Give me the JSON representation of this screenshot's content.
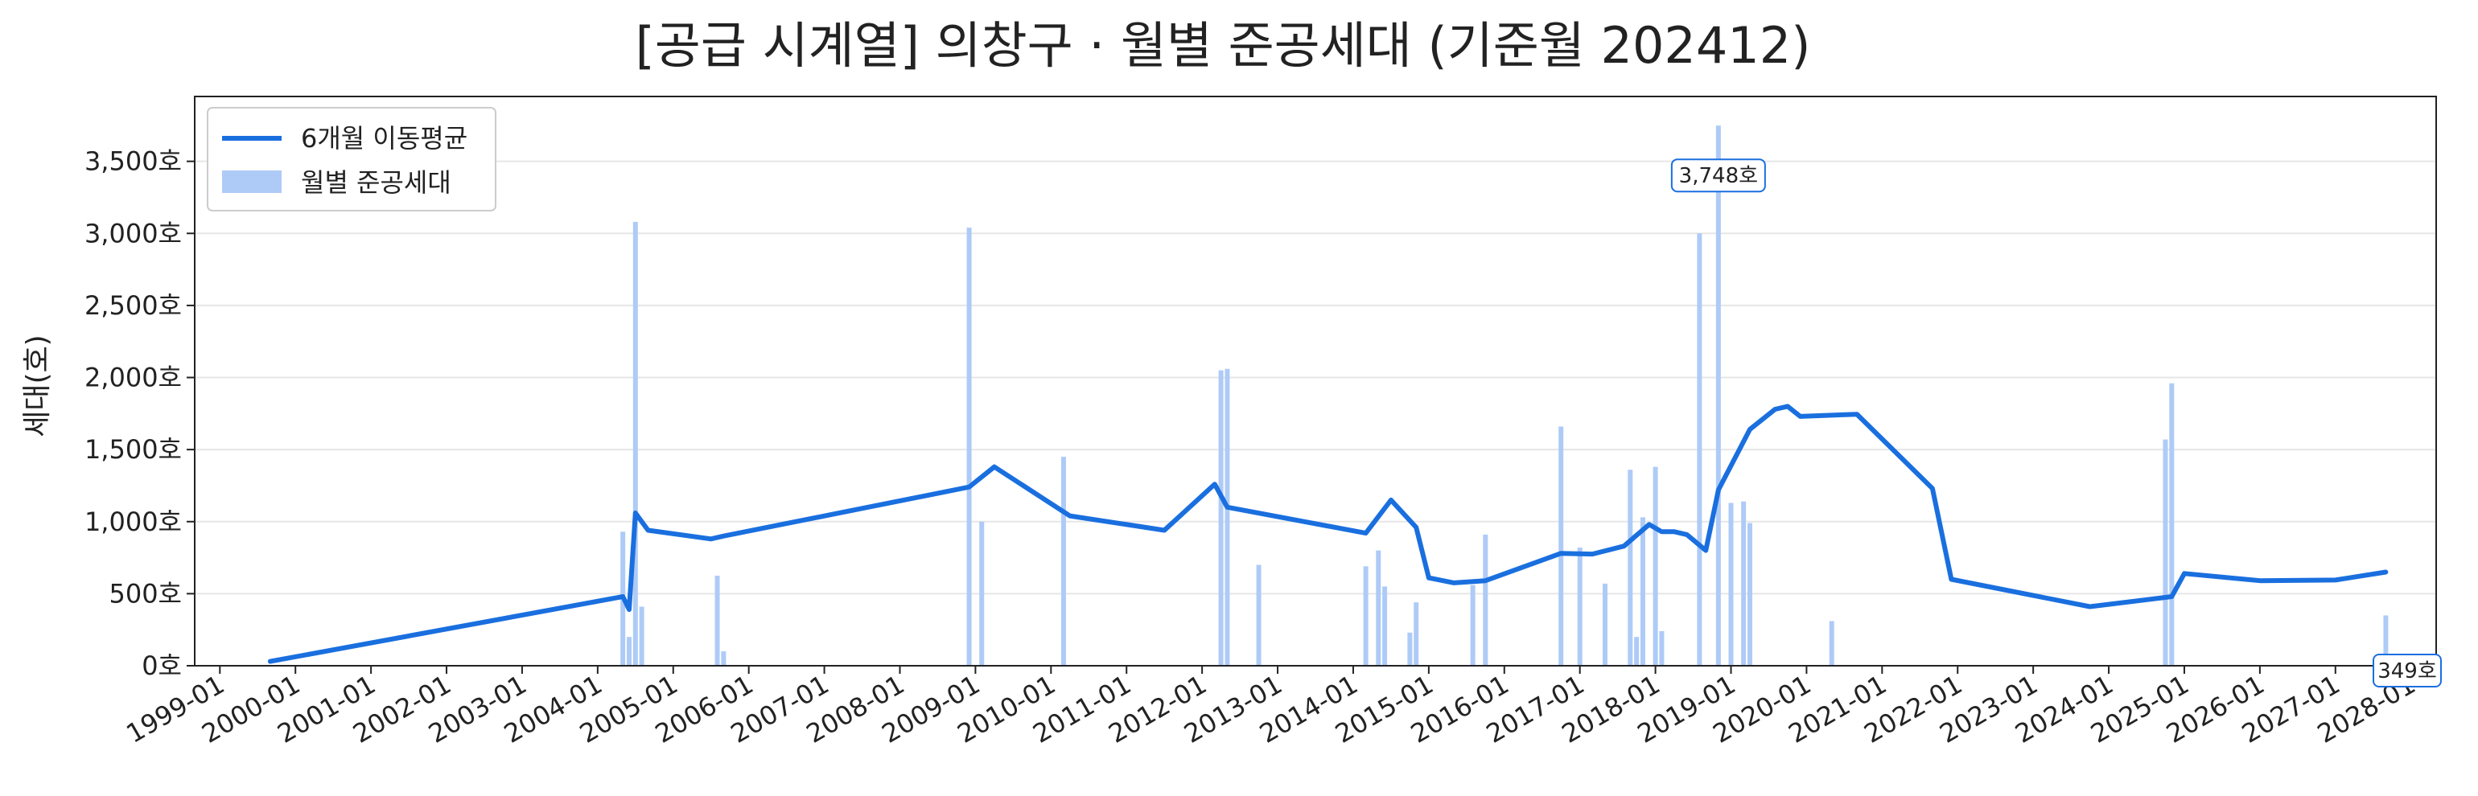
{
  "chart_data": {
    "type": "bar",
    "title": "[공급 시계열] 의창구 · 월별 준공세대 (기준월 202412)",
    "xlabel": "",
    "ylabel": "세대(호)",
    "ylim": [
      0,
      3950
    ],
    "yticks": [
      0,
      500,
      1000,
      1500,
      2000,
      2500,
      3000,
      3500
    ],
    "ytick_suffix": "호",
    "xlim": [
      "1998-09",
      "2028-05"
    ],
    "xticks": [
      "1999-01",
      "2000-01",
      "2001-01",
      "2002-01",
      "2003-01",
      "2004-01",
      "2005-01",
      "2006-01",
      "2007-01",
      "2008-01",
      "2009-01",
      "2010-01",
      "2011-01",
      "2012-01",
      "2013-01",
      "2014-01",
      "2015-01",
      "2016-01",
      "2017-01",
      "2018-01",
      "2019-01",
      "2020-01",
      "2021-01",
      "2022-01",
      "2023-01",
      "2024-01",
      "2025-01",
      "2026-01",
      "2027-01",
      "2028-01"
    ],
    "grid": "y",
    "legend_position": "top-left",
    "colors": {
      "bar": "#aecbf7",
      "line": "#1a6fdf",
      "axis": "#222222",
      "grid": "#e6e6e6"
    },
    "series": [
      {
        "name": "월별 준공세대",
        "type": "bar",
        "points": [
          {
            "x": "2004-05",
            "y": 930
          },
          {
            "x": "2004-06",
            "y": 200
          },
          {
            "x": "2004-07",
            "y": 3080
          },
          {
            "x": "2004-08",
            "y": 410
          },
          {
            "x": "2005-08",
            "y": 625
          },
          {
            "x": "2005-09",
            "y": 100
          },
          {
            "x": "2008-12",
            "y": 3040
          },
          {
            "x": "2009-02",
            "y": 1000
          },
          {
            "x": "2010-03",
            "y": 1450
          },
          {
            "x": "2012-04",
            "y": 2050
          },
          {
            "x": "2012-05",
            "y": 2060
          },
          {
            "x": "2012-10",
            "y": 700
          },
          {
            "x": "2014-03",
            "y": 690
          },
          {
            "x": "2014-05",
            "y": 800
          },
          {
            "x": "2014-06",
            "y": 550
          },
          {
            "x": "2014-10",
            "y": 230
          },
          {
            "x": "2014-11",
            "y": 440
          },
          {
            "x": "2015-08",
            "y": 560
          },
          {
            "x": "2015-10",
            "y": 910
          },
          {
            "x": "2016-10",
            "y": 1660
          },
          {
            "x": "2017-01",
            "y": 820
          },
          {
            "x": "2017-05",
            "y": 570
          },
          {
            "x": "2017-09",
            "y": 1360
          },
          {
            "x": "2017-10",
            "y": 200
          },
          {
            "x": "2017-11",
            "y": 1030
          },
          {
            "x": "2018-01",
            "y": 1380
          },
          {
            "x": "2018-02",
            "y": 240
          },
          {
            "x": "2018-08",
            "y": 3000
          },
          {
            "x": "2018-11",
            "y": 3748
          },
          {
            "x": "2019-01",
            "y": 1130
          },
          {
            "x": "2019-03",
            "y": 1140
          },
          {
            "x": "2019-04",
            "y": 990
          },
          {
            "x": "2020-05",
            "y": 310
          },
          {
            "x": "2024-10",
            "y": 1570
          },
          {
            "x": "2024-11",
            "y": 1960
          },
          {
            "x": "2027-09",
            "y": 349
          }
        ]
      },
      {
        "name": "6개월 이동평균",
        "type": "line",
        "points": [
          {
            "x": "1999-09",
            "y": 30
          },
          {
            "x": "2004-05",
            "y": 480
          },
          {
            "x": "2004-06",
            "y": 390
          },
          {
            "x": "2004-07",
            "y": 1060
          },
          {
            "x": "2004-09",
            "y": 940
          },
          {
            "x": "2005-07",
            "y": 880
          },
          {
            "x": "2005-09",
            "y": 900
          },
          {
            "x": "2008-12",
            "y": 1240
          },
          {
            "x": "2009-04",
            "y": 1380
          },
          {
            "x": "2010-04",
            "y": 1040
          },
          {
            "x": "2011-07",
            "y": 940
          },
          {
            "x": "2012-03",
            "y": 1260
          },
          {
            "x": "2012-05",
            "y": 1100
          },
          {
            "x": "2014-03",
            "y": 920
          },
          {
            "x": "2014-07",
            "y": 1150
          },
          {
            "x": "2014-11",
            "y": 960
          },
          {
            "x": "2015-01",
            "y": 610
          },
          {
            "x": "2015-05",
            "y": 575
          },
          {
            "x": "2015-10",
            "y": 590
          },
          {
            "x": "2016-10",
            "y": 780
          },
          {
            "x": "2017-03",
            "y": 775
          },
          {
            "x": "2017-08",
            "y": 830
          },
          {
            "x": "2017-12",
            "y": 980
          },
          {
            "x": "2018-02",
            "y": 930
          },
          {
            "x": "2018-04",
            "y": 930
          },
          {
            "x": "2018-06",
            "y": 910
          },
          {
            "x": "2018-09",
            "y": 800
          },
          {
            "x": "2018-11",
            "y": 1220
          },
          {
            "x": "2019-04",
            "y": 1640
          },
          {
            "x": "2019-08",
            "y": 1780
          },
          {
            "x": "2019-10",
            "y": 1800
          },
          {
            "x": "2019-12",
            "y": 1730
          },
          {
            "x": "2020-09",
            "y": 1745
          },
          {
            "x": "2021-09",
            "y": 1230
          },
          {
            "x": "2021-12",
            "y": 600
          },
          {
            "x": "2023-10",
            "y": 410
          },
          {
            "x": "2024-11",
            "y": 480
          },
          {
            "x": "2025-01",
            "y": 640
          },
          {
            "x": "2026-01",
            "y": 590
          },
          {
            "x": "2027-01",
            "y": 595
          },
          {
            "x": "2027-09",
            "y": 650
          }
        ]
      }
    ],
    "annotations": [
      {
        "text": "3,748호",
        "x": "2018-11",
        "y": 3748
      },
      {
        "text": "349호",
        "x": "2027-09",
        "y": 349
      }
    ]
  }
}
